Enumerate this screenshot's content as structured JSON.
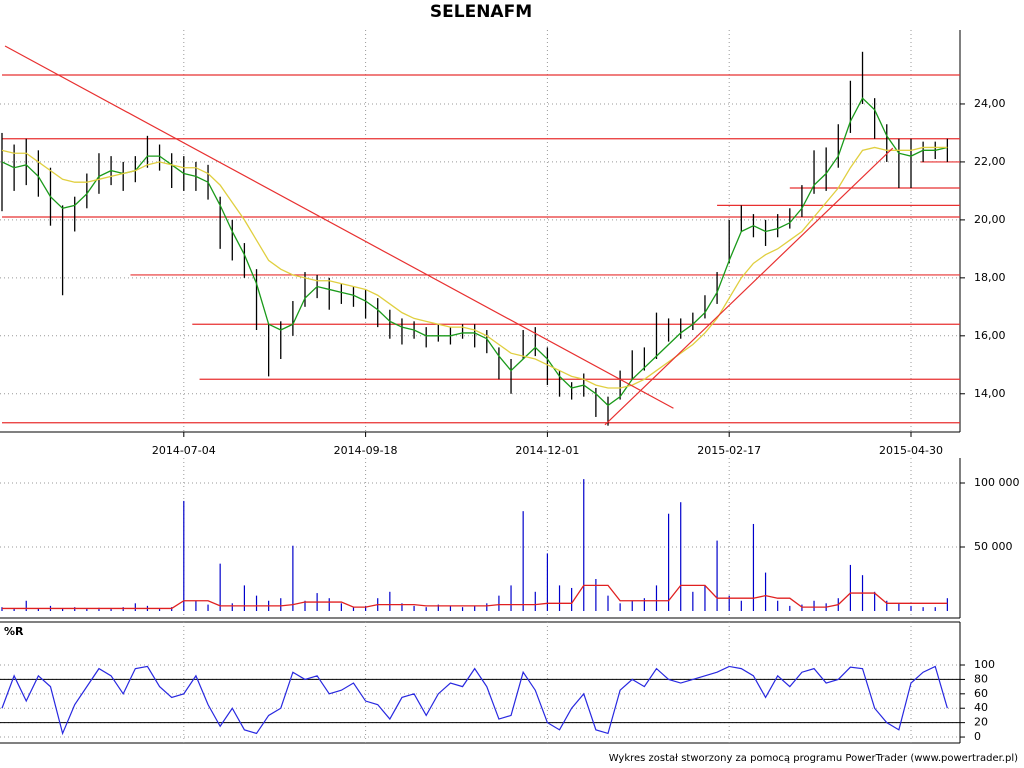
{
  "chart_data": [
    {
      "type": "hilo",
      "title": "SELENAFM",
      "color": "#000000",
      "categories": [
        null,
        null,
        null,
        null,
        null,
        null,
        null,
        null,
        null,
        null,
        null,
        null,
        null,
        null,
        null,
        "2014-07-04",
        null,
        null,
        null,
        null,
        null,
        null,
        null,
        null,
        null,
        null,
        null,
        null,
        null,
        null,
        "2014-09-18",
        null,
        null,
        null,
        null,
        null,
        null,
        null,
        null,
        null,
        null,
        null,
        null,
        null,
        null,
        "2014-12-01",
        null,
        null,
        null,
        null,
        null,
        null,
        null,
        null,
        null,
        null,
        null,
        null,
        null,
        null,
        "2015-02-17",
        null,
        null,
        null,
        null,
        null,
        null,
        null,
        null,
        null,
        null,
        null,
        null,
        null,
        null,
        "2015-04-30",
        null,
        null,
        null
      ],
      "high": [
        23.0,
        22.6,
        22.8,
        22.4,
        21.8,
        20.5,
        20.8,
        21.6,
        22.3,
        22.2,
        22.0,
        22.2,
        22.9,
        22.6,
        22.3,
        22.2,
        22.0,
        21.9,
        20.8,
        20.0,
        19.2,
        18.3,
        16.4,
        16.5,
        17.2,
        18.2,
        18.1,
        18.0,
        17.8,
        17.7,
        17.6,
        17.3,
        16.9,
        16.6,
        16.5,
        16.3,
        16.4,
        16.3,
        16.4,
        16.4,
        16.2,
        15.6,
        15.2,
        16.2,
        16.3,
        15.6,
        14.8,
        14.4,
        14.7,
        14.2,
        13.9,
        14.8,
        15.5,
        15.6,
        16.8,
        16.6,
        16.6,
        16.8,
        17.4,
        18.2,
        20.0,
        20.5,
        20.2,
        20.0,
        20.2,
        20.4,
        21.2,
        22.4,
        22.5,
        23.3,
        24.8,
        25.8,
        24.2,
        23.3,
        22.8,
        22.8,
        22.7,
        22.7,
        22.8
      ],
      "low": [
        20.3,
        21.0,
        21.2,
        20.8,
        19.8,
        17.4,
        19.6,
        20.4,
        20.9,
        21.2,
        21.0,
        21.3,
        21.8,
        21.7,
        21.1,
        21.0,
        21.0,
        20.7,
        19.0,
        18.6,
        18.0,
        16.2,
        14.6,
        15.2,
        16.0,
        17.0,
        17.3,
        16.9,
        17.1,
        17.0,
        16.6,
        16.3,
        15.9,
        15.7,
        15.9,
        15.6,
        15.8,
        15.7,
        15.9,
        15.6,
        15.4,
        14.5,
        14.0,
        15.2,
        15.3,
        14.3,
        13.9,
        13.8,
        13.9,
        13.2,
        12.9,
        13.8,
        14.5,
        14.8,
        15.2,
        15.8,
        15.9,
        16.2,
        16.6,
        17.1,
        18.5,
        19.6,
        19.4,
        19.1,
        19.4,
        19.7,
        20.1,
        20.9,
        21.0,
        21.8,
        23.0,
        24.0,
        22.8,
        22.0,
        21.1,
        21.1,
        22.0,
        22.1,
        22.0
      ],
      "lines": [
        {
          "color": "#1a9a1a",
          "values": [
            22.0,
            21.8,
            21.9,
            21.5,
            20.8,
            20.4,
            20.5,
            20.9,
            21.5,
            21.7,
            21.6,
            21.7,
            22.2,
            22.2,
            21.9,
            21.6,
            21.5,
            21.3,
            20.5,
            19.6,
            18.8,
            17.8,
            16.4,
            16.2,
            16.4,
            17.3,
            17.7,
            17.6,
            17.5,
            17.4,
            17.2,
            16.9,
            16.5,
            16.3,
            16.2,
            16.0,
            16.0,
            16.0,
            16.1,
            16.1,
            15.9,
            15.3,
            14.8,
            15.2,
            15.6,
            15.2,
            14.6,
            14.2,
            14.3,
            14.0,
            13.6,
            13.9,
            14.5,
            14.9,
            15.3,
            15.7,
            16.1,
            16.4,
            16.8,
            17.5,
            18.6,
            19.6,
            19.8,
            19.6,
            19.7,
            19.9,
            20.4,
            21.2,
            21.6,
            22.2,
            23.4,
            24.2,
            23.8,
            22.9,
            22.3,
            22.2,
            22.4,
            22.4,
            22.5
          ]
        },
        {
          "color": "#e0cf40",
          "values": [
            22.4,
            22.3,
            22.3,
            22.0,
            21.7,
            21.4,
            21.3,
            21.3,
            21.4,
            21.5,
            21.6,
            21.7,
            21.9,
            22.0,
            21.9,
            21.8,
            21.8,
            21.6,
            21.2,
            20.6,
            20.0,
            19.3,
            18.6,
            18.3,
            18.1,
            18.0,
            17.9,
            17.9,
            17.8,
            17.7,
            17.6,
            17.4,
            17.1,
            16.8,
            16.6,
            16.5,
            16.4,
            16.3,
            16.3,
            16.2,
            16.0,
            15.7,
            15.4,
            15.3,
            15.2,
            15.0,
            14.8,
            14.6,
            14.5,
            14.3,
            14.2,
            14.2,
            14.3,
            14.5,
            14.8,
            15.1,
            15.4,
            15.7,
            16.1,
            16.6,
            17.3,
            18.0,
            18.5,
            18.8,
            19.0,
            19.3,
            19.6,
            20.1,
            20.6,
            21.1,
            21.8,
            22.4,
            22.5,
            22.4,
            22.4,
            22.4,
            22.5,
            22.5,
            22.5
          ]
        }
      ],
      "level_color": "#e83030",
      "levels": [
        {
          "value": 25.0,
          "from": 0
        },
        {
          "value": 22.8,
          "from": 0
        },
        {
          "value": 22.0,
          "from": 75.8
        },
        {
          "value": 21.1,
          "from": 65
        },
        {
          "value": 20.5,
          "from": 59
        },
        {
          "value": 20.1,
          "from": 0
        },
        {
          "value": 18.1,
          "from": 10.6
        },
        {
          "value": 16.4,
          "from": 15.7
        },
        {
          "value": 14.5,
          "from": 16.3
        },
        {
          "value": 13.0,
          "from": 0
        }
      ],
      "trendlines": [
        {
          "x": [
            0.25,
            55.4
          ],
          "y": [
            26.0,
            13.5
          ]
        },
        {
          "x": [
            49.75,
            73.5
          ],
          "y": [
            12.93,
            22.48
          ]
        }
      ],
      "ylim": [
        12.75,
        26
      ],
      "yticks": [
        {
          "value": 14,
          "label": "14,00"
        },
        {
          "value": 16,
          "label": "16,00"
        },
        {
          "value": 18,
          "label": "18,00"
        },
        {
          "value": 20,
          "label": "20,00"
        },
        {
          "value": 22,
          "label": "22,00"
        },
        {
          "value": 24,
          "label": "24,00"
        }
      ],
      "grid": true
    },
    {
      "type": "bar",
      "color": "#0000cc",
      "ma_color": "#e02020",
      "values": [
        3000,
        2000,
        8000,
        2000,
        4000,
        2000,
        3000,
        2000,
        2500,
        2000,
        3000,
        6000,
        4000,
        2000,
        3000,
        86000,
        8000,
        5000,
        37000,
        6000,
        20000,
        12000,
        8000,
        10000,
        51000,
        8000,
        14000,
        10000,
        6000,
        3000,
        4000,
        10000,
        15000,
        6000,
        4000,
        3000,
        5000,
        4000,
        3000,
        4000,
        6000,
        12000,
        20000,
        78000,
        15000,
        45000,
        20000,
        18000,
        103000,
        25000,
        12000,
        6000,
        8000,
        10000,
        20000,
        76000,
        85000,
        15000,
        20000,
        55000,
        12000,
        8000,
        68000,
        30000,
        8000,
        4000,
        5000,
        8000,
        6000,
        10000,
        36000,
        28000,
        15000,
        8000,
        6000,
        4000,
        3000,
        3000,
        10000
      ],
      "ma": [
        2000,
        2000,
        2000,
        2000,
        2000,
        2000,
        2000,
        2000,
        2000,
        2000,
        2000,
        2000,
        2000,
        2000,
        2000,
        8000,
        8000,
        8000,
        4000,
        4000,
        4000,
        4000,
        4000,
        4000,
        5000,
        7000,
        7000,
        7000,
        7000,
        3000,
        3000,
        5000,
        5000,
        5000,
        5000,
        4000,
        4000,
        4000,
        4000,
        4000,
        4000,
        5000,
        5000,
        5000,
        5000,
        6000,
        6000,
        6000,
        20000,
        20000,
        20000,
        8000,
        8000,
        8000,
        8000,
        8000,
        20000,
        20000,
        20000,
        10000,
        10000,
        10000,
        10000,
        12000,
        10000,
        10000,
        3000,
        3000,
        3000,
        5000,
        14000,
        14000,
        14000,
        6000,
        6000,
        6000,
        6000,
        6000,
        6000
      ],
      "ylim": [
        -5000,
        120000
      ],
      "yticks": [
        {
          "value": 50000,
          "label": "50 000"
        },
        {
          "value": 100000,
          "label": "100 000"
        }
      ],
      "grid": true
    },
    {
      "type": "line",
      "title": "%R",
      "color": "#2828e0",
      "values": [
        40,
        85,
        50,
        85,
        70,
        5,
        45,
        70,
        95,
        85,
        60,
        95,
        98,
        70,
        55,
        60,
        85,
        45,
        15,
        40,
        10,
        5,
        30,
        40,
        90,
        80,
        85,
        60,
        65,
        75,
        50,
        45,
        25,
        55,
        60,
        30,
        60,
        75,
        70,
        95,
        70,
        25,
        30,
        90,
        65,
        20,
        10,
        40,
        60,
        10,
        5,
        65,
        80,
        70,
        95,
        80,
        75,
        80,
        85,
        90,
        98,
        95,
        85,
        55,
        85,
        70,
        90,
        95,
        75,
        80,
        97,
        95,
        40,
        20,
        10,
        75,
        90,
        98,
        40
      ],
      "bands": [
        80,
        20
      ],
      "ylim": [
        -8,
        150
      ],
      "yticks": [
        0,
        20,
        40,
        60,
        80,
        100
      ],
      "grid": true
    }
  ],
  "footer": "Wykres został stworzony za pomocą programu PowerTrader (www.powertrader.pl)"
}
